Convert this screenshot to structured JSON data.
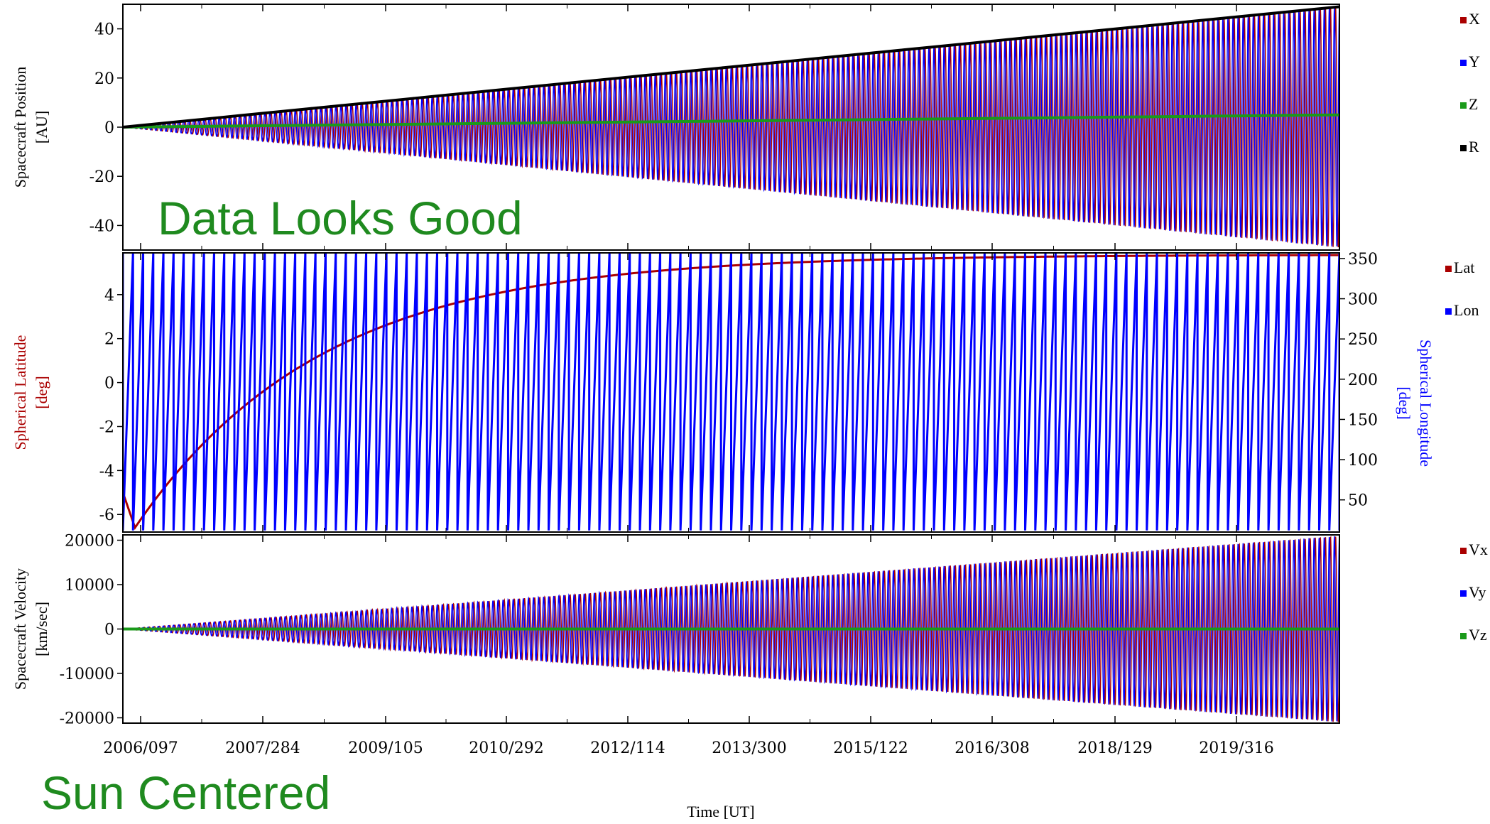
{
  "annotations": {
    "top": "Data Looks Good",
    "bottom": "Sun Centered",
    "color": "#1f8a1f"
  },
  "time_axis": {
    "label": "Time [UT]",
    "ticks": [
      "2006/097",
      "2007/284",
      "2009/105",
      "2010/292",
      "2012/114",
      "2013/300",
      "2015/122",
      "2016/308",
      "2018/129",
      "2019/316"
    ]
  },
  "chart_data": [
    {
      "type": "line",
      "panel": "position",
      "ylabel": [
        "Spacecraft Position",
        "[AU]"
      ],
      "ylim": [
        -50,
        50
      ],
      "yticks": [
        "40",
        "20",
        "0",
        "-20",
        "-40"
      ],
      "ytick_values": [
        40,
        20,
        0,
        -20,
        -40
      ],
      "x_range": [
        "2006/070",
        "2020/320"
      ],
      "series": [
        {
          "name": "X",
          "color": "#aa0000",
          "kind": "oscillation",
          "amplitude_start": 0,
          "amplitude_end": 49,
          "approx_cycles": 240
        },
        {
          "name": "Y",
          "color": "#0000ff",
          "kind": "oscillation",
          "amplitude_start": 0,
          "amplitude_end": 49,
          "approx_cycles": 240
        },
        {
          "name": "Z",
          "color": "#1a9a1a",
          "kind": "trend",
          "start": 0,
          "end": 5
        },
        {
          "name": "R",
          "color": "#000000",
          "kind": "trend",
          "start": 0,
          "end": 49
        }
      ]
    },
    {
      "type": "line",
      "panel": "spherical",
      "ylabel": [
        "Spherical Latitude",
        "[deg]"
      ],
      "ylabel_right": [
        "Spherical Longitude",
        "[deg]"
      ],
      "ylim": [
        -6.8,
        5.9
      ],
      "yticks": [
        "4",
        "2",
        "0",
        "-2",
        "-4",
        "-6"
      ],
      "ytick_values": [
        4,
        2,
        0,
        -2,
        -4,
        -6
      ],
      "ylim_right": [
        10,
        357
      ],
      "yticks_right": [
        "350",
        "300",
        "250",
        "200",
        "150",
        "100",
        "50"
      ],
      "ytick_values_right": [
        350,
        300,
        250,
        200,
        150,
        100,
        50
      ],
      "series": [
        {
          "name": "Lat",
          "color": "#aa0000",
          "kind": "latitude",
          "start": -5,
          "min": -6.6,
          "end": 5.8,
          "axis": "left"
        },
        {
          "name": "Lon",
          "color": "#0000ff",
          "kind": "sawtooth",
          "min": 12,
          "max": 357,
          "approx_cycles": 120,
          "axis": "right"
        }
      ]
    },
    {
      "type": "line",
      "panel": "velocity",
      "ylabel": [
        "Spacecraft Velocity",
        "[km/sec]"
      ],
      "ylim": [
        -21200,
        21200
      ],
      "yticks": [
        "20000",
        "10000",
        "0",
        "-10000",
        "-20000"
      ],
      "ytick_values": [
        20000,
        10000,
        0,
        -10000,
        -20000
      ],
      "series": [
        {
          "name": "Vx",
          "color": "#aa0000",
          "kind": "oscillation",
          "amplitude_start": 0,
          "amplitude_end": 21000,
          "approx_cycles": 240
        },
        {
          "name": "Vy",
          "color": "#0000ff",
          "kind": "oscillation",
          "amplitude_start": 0,
          "amplitude_end": 21000,
          "approx_cycles": 240
        },
        {
          "name": "Vz",
          "color": "#1a9a1a",
          "kind": "trend",
          "start": 0,
          "end": 0
        }
      ]
    }
  ]
}
